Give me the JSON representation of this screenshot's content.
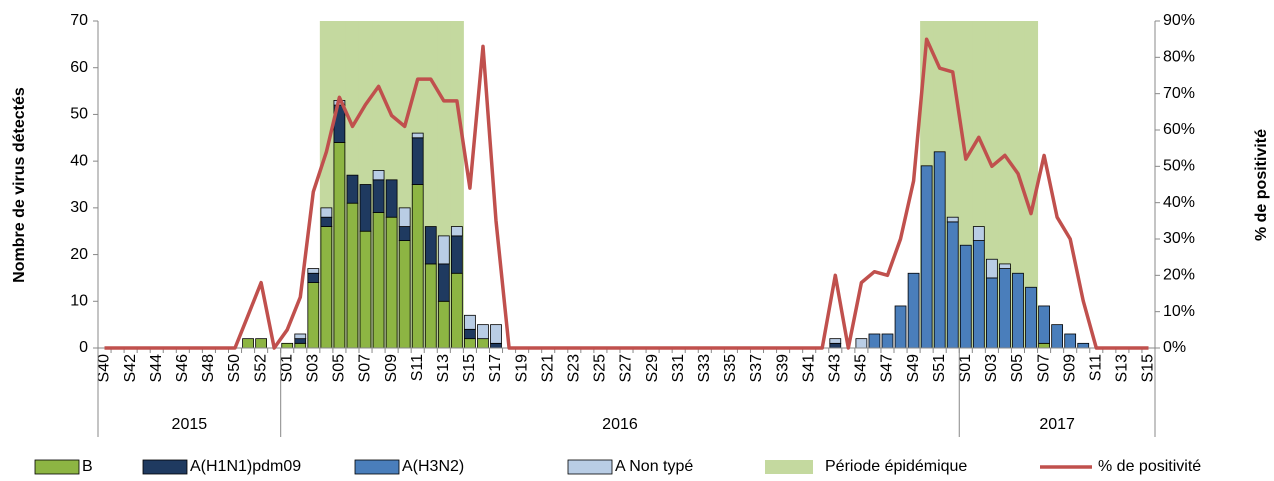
{
  "chart_data": {
    "type": "bar",
    "y_label": "Nombre de virus détectés",
    "y2_label": "% de positivité",
    "categories": [
      "S40",
      null,
      "S42",
      null,
      "S44",
      null,
      "S46",
      null,
      "S48",
      null,
      "S50",
      null,
      "S52",
      null,
      "S01",
      null,
      "S03",
      null,
      "S05",
      null,
      "S07",
      null,
      "S09",
      null,
      "S11",
      null,
      "S13",
      null,
      "S15",
      null,
      "S17",
      null,
      "S19",
      null,
      "S21",
      null,
      "S23",
      null,
      "S25",
      null,
      "S27",
      null,
      "S29",
      null,
      "S31",
      null,
      "S33",
      null,
      "S35",
      null,
      "S37",
      null,
      "S39",
      null,
      "S41",
      null,
      "S43",
      null,
      "S45",
      null,
      "S47",
      null,
      "S49",
      null,
      "S51",
      null,
      "S01",
      null,
      "S03",
      null,
      "S05",
      null,
      "S07",
      null,
      "S09",
      null,
      "S11",
      null,
      "S13",
      null,
      "S15"
    ],
    "years": [
      "2015",
      "2016",
      "2017"
    ],
    "ylim": [
      0,
      70
    ],
    "yticks": [
      0,
      10,
      20,
      30,
      40,
      50,
      60,
      70
    ],
    "y2lim": [
      0,
      90
    ],
    "y2ticks": [
      {
        "value": 0,
        "label": "0%"
      },
      {
        "value": 10,
        "label": "10%"
      },
      {
        "value": 20,
        "label": "20%"
      },
      {
        "value": 30,
        "label": "30%"
      },
      {
        "value": 40,
        "label": "40%"
      },
      {
        "value": 50,
        "label": "50%"
      },
      {
        "value": 60,
        "label": "60%"
      },
      {
        "value": 70,
        "label": "70%"
      },
      {
        "value": 80,
        "label": "80%"
      },
      {
        "value": 90,
        "label": "90%"
      }
    ],
    "series": [
      {
        "name": "B",
        "type": "bar",
        "color": "#8db543",
        "values": [
          0,
          0,
          0,
          0,
          0,
          0,
          0,
          0,
          0,
          0,
          0,
          2,
          2,
          0,
          1,
          1,
          14,
          26,
          44,
          31,
          25,
          29,
          28,
          23,
          35,
          18,
          10,
          16,
          2,
          2,
          0,
          0,
          0,
          0,
          0,
          0,
          0,
          0,
          0,
          0,
          0,
          0,
          0,
          0,
          0,
          0,
          0,
          0,
          0,
          0,
          0,
          0,
          0,
          0,
          0,
          0,
          0,
          0,
          0,
          0,
          0,
          0,
          0,
          0,
          0,
          0,
          0,
          0,
          0,
          0,
          0,
          0,
          1,
          0,
          0,
          0,
          0,
          0,
          0,
          0,
          0
        ]
      },
      {
        "name": "A(H1N1)pdm09",
        "type": "bar",
        "color": "#1f3a60",
        "values": [
          0,
          0,
          0,
          0,
          0,
          0,
          0,
          0,
          0,
          0,
          0,
          0,
          0,
          0,
          0,
          1,
          2,
          2,
          8,
          6,
          10,
          7,
          8,
          3,
          10,
          8,
          8,
          8,
          2,
          0,
          1,
          0,
          0,
          0,
          0,
          0,
          0,
          0,
          0,
          0,
          0,
          0,
          0,
          0,
          0,
          0,
          0,
          0,
          0,
          0,
          0,
          0,
          0,
          0,
          0,
          0,
          1,
          0,
          0,
          0,
          0,
          0,
          0,
          0,
          0,
          0,
          0,
          0,
          0,
          0,
          0,
          0,
          0,
          0,
          0,
          0,
          0,
          0,
          0,
          0,
          0
        ]
      },
      {
        "name": "A(H3N2)",
        "type": "bar",
        "color": "#4a7ebb",
        "values": [
          0,
          0,
          0,
          0,
          0,
          0,
          0,
          0,
          0,
          0,
          0,
          0,
          0,
          0,
          0,
          0,
          0,
          0,
          0,
          0,
          0,
          0,
          0,
          0,
          0,
          0,
          0,
          0,
          0,
          0,
          0,
          0,
          0,
          0,
          0,
          0,
          0,
          0,
          0,
          0,
          0,
          0,
          0,
          0,
          0,
          0,
          0,
          0,
          0,
          0,
          0,
          0,
          0,
          0,
          0,
          0,
          0,
          0,
          0,
          3,
          3,
          9,
          16,
          39,
          42,
          27,
          22,
          23,
          15,
          17,
          16,
          13,
          8,
          5,
          3,
          1,
          0,
          0,
          0,
          0,
          0
        ]
      },
      {
        "name": "A Non typé",
        "type": "bar",
        "color": "#b9cde5",
        "values": [
          0,
          0,
          0,
          0,
          0,
          0,
          0,
          0,
          0,
          0,
          0,
          0,
          0,
          0,
          0,
          1,
          1,
          2,
          1,
          0,
          0,
          2,
          0,
          4,
          1,
          0,
          6,
          2,
          3,
          3,
          4,
          0,
          0,
          0,
          0,
          0,
          0,
          0,
          0,
          0,
          0,
          0,
          0,
          0,
          0,
          0,
          0,
          0,
          0,
          0,
          0,
          0,
          0,
          0,
          0,
          0,
          1,
          0,
          2,
          0,
          0,
          0,
          0,
          0,
          0,
          1,
          0,
          3,
          4,
          1,
          0,
          0,
          0,
          0,
          0,
          0,
          0,
          0,
          0,
          0,
          0
        ]
      },
      {
        "name": "Période épidémique",
        "type": "band",
        "color": "#c4d99f",
        "values": [
          null,
          null,
          null,
          null,
          null,
          null,
          null,
          null,
          null,
          null,
          null,
          null,
          null,
          null,
          null,
          null,
          null,
          70,
          70,
          70,
          70,
          70,
          70,
          70,
          70,
          70,
          70,
          70,
          null,
          null,
          null,
          null,
          null,
          null,
          null,
          null,
          null,
          null,
          null,
          null,
          null,
          null,
          null,
          null,
          null,
          null,
          null,
          null,
          null,
          null,
          null,
          null,
          null,
          null,
          null,
          null,
          null,
          null,
          null,
          null,
          null,
          null,
          null,
          70,
          70,
          70,
          70,
          70,
          70,
          70,
          70,
          70,
          null,
          null,
          null,
          null,
          null,
          null,
          null,
          null,
          null
        ]
      },
      {
        "name": "% de positivité",
        "type": "line",
        "axis": "y2",
        "color": "#c0504d",
        "values": [
          0,
          0,
          0,
          0,
          0,
          0,
          0,
          0,
          0,
          0,
          0,
          9,
          18,
          0,
          5,
          14,
          43,
          54,
          69,
          61,
          67,
          72,
          64,
          61,
          74,
          74,
          68,
          68,
          44,
          83,
          35,
          0,
          0,
          0,
          0,
          0,
          0,
          0,
          0,
          0,
          0,
          0,
          0,
          0,
          0,
          0,
          0,
          0,
          0,
          0,
          0,
          0,
          0,
          0,
          0,
          0,
          20,
          0,
          18,
          21,
          20,
          30,
          46,
          85,
          77,
          76,
          52,
          58,
          50,
          53,
          48,
          37,
          53,
          36,
          30,
          13,
          0,
          0,
          0,
          0,
          0
        ]
      }
    ]
  }
}
